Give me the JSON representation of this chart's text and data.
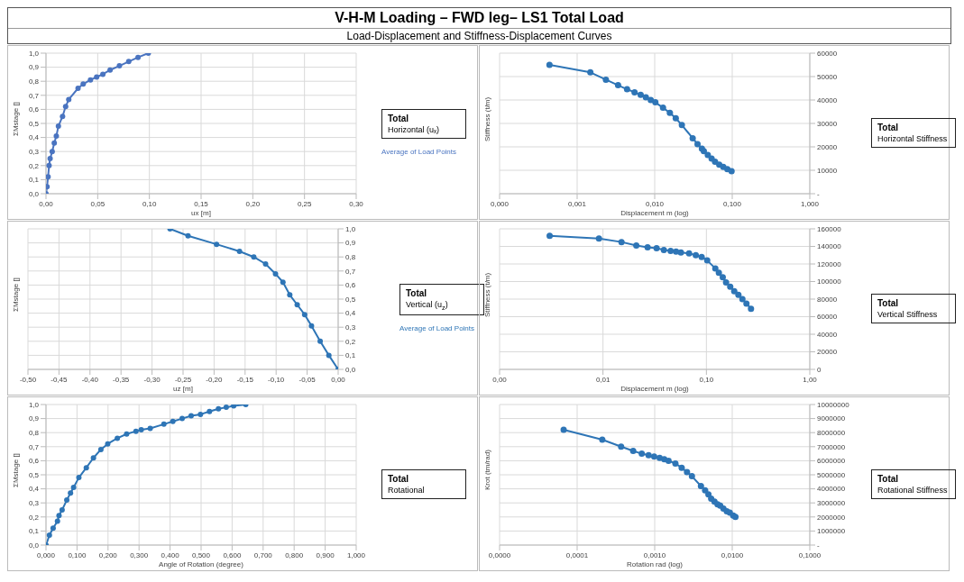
{
  "chart_data": [
    {
      "type": "other",
      "title": "V-H-M Loading – FWD leg– LS1 Total Load",
      "subtitle": "Load-Displacement and Stiffness-Displacement Curves"
    },
    {
      "type": "line",
      "annotations": [
        "Total",
        "Horizontal (uₓ)"
      ],
      "xlabel": "ux [m]",
      "ylabel": "ΣMstage []",
      "legend": "right",
      "grid": true,
      "marker": "circle",
      "line_style": "solid",
      "x": [
        0,
        0.001,
        0.002,
        0.003,
        0.004,
        0.006,
        0.008,
        0.01,
        0.012,
        0.016,
        0.019,
        0.022,
        0.031,
        0.036,
        0.043,
        0.049,
        0.055,
        0.062,
        0.071,
        0.08,
        0.089,
        0.099
      ],
      "series": [
        {
          "name": "Average of Load Points",
          "color": "#4a74c0",
          "values": [
            0,
            0.05,
            0.12,
            0.2,
            0.25,
            0.3,
            0.36,
            0.41,
            0.48,
            0.55,
            0.62,
            0.67,
            0.75,
            0.78,
            0.81,
            0.83,
            0.85,
            0.88,
            0.91,
            0.94,
            0.97,
            1.0
          ]
        }
      ],
      "xlim": [
        0,
        0.3
      ],
      "xticks": [
        {
          "value": 0,
          "label": "0,00"
        },
        {
          "value": 0.05,
          "label": "0,05"
        },
        {
          "value": 0.1,
          "label": "0,10"
        },
        {
          "value": 0.15,
          "label": "0,15"
        },
        {
          "value": 0.2,
          "label": "0,20"
        },
        {
          "value": 0.25,
          "label": "0,25"
        },
        {
          "value": 0.3,
          "label": "0,30"
        }
      ],
      "ylim": [
        0,
        1
      ],
      "yticks": [
        {
          "value": 0,
          "label": "0,0"
        },
        {
          "value": 0.1,
          "label": "0,1"
        },
        {
          "value": 0.2,
          "label": "0,2"
        },
        {
          "value": 0.3,
          "label": "0,3"
        },
        {
          "value": 0.4,
          "label": "0,4"
        },
        {
          "value": 0.5,
          "label": "0,5"
        },
        {
          "value": 0.6,
          "label": "0,6"
        },
        {
          "value": 0.7,
          "label": "0,7"
        },
        {
          "value": 0.8,
          "label": "0,8"
        },
        {
          "value": 0.9,
          "label": "0,9"
        },
        {
          "value": 1,
          "label": "1,0"
        }
      ]
    },
    {
      "type": "line",
      "annotations": [
        "Total",
        "Horizontal Stiffness"
      ],
      "xlabel": "Displacement m (log)",
      "ylabel": "Stiffness (t/m)",
      "log": "x",
      "grid": true,
      "marker": "circle",
      "line_style": "solid",
      "x": [
        0.00044,
        0.00148,
        0.00235,
        0.00337,
        0.0044,
        0.0055,
        0.0066,
        0.0077,
        0.0089,
        0.0102,
        0.0128,
        0.0157,
        0.0187,
        0.0224,
        0.0309,
        0.0357,
        0.0406,
        0.043,
        0.0484,
        0.0542,
        0.06,
        0.068,
        0.0767,
        0.0865,
        0.098
      ],
      "series": [
        {
          "color": "#2e75b6",
          "values": [
            55000,
            51800,
            48700,
            46300,
            44600,
            43300,
            42200,
            41200,
            40000,
            39000,
            36700,
            34500,
            32200,
            29300,
            23700,
            21200,
            19200,
            18200,
            16500,
            15000,
            13700,
            12400,
            11400,
            10500,
            9600
          ]
        }
      ],
      "xlim": [
        0.0001,
        1
      ],
      "xticks": [
        {
          "value": 0.0001,
          "label": "0,000"
        },
        {
          "value": 0.001,
          "label": "0,001"
        },
        {
          "value": 0.01,
          "label": "0,010"
        },
        {
          "value": 0.1,
          "label": "0,100"
        },
        {
          "value": 1,
          "label": "1,000"
        }
      ],
      "ylim": [
        0,
        60000
      ],
      "yticks": [
        {
          "value": 0,
          "label": "-"
        },
        10000,
        20000,
        30000,
        40000,
        50000,
        60000
      ]
    },
    {
      "type": "line",
      "annotations": [
        "Total",
        "Vertical (u$_{z}$)"
      ],
      "xlabel": "uz [m]",
      "ylabel": "ΣMstage []",
      "legend": "right",
      "grid": true,
      "marker": "circle",
      "line_style": "solid",
      "x": [
        -0.271,
        -0.242,
        -0.196,
        -0.159,
        -0.136,
        -0.117,
        -0.101,
        -0.089,
        -0.078,
        -0.066,
        -0.054,
        -0.043,
        -0.029,
        -0.015,
        0
      ],
      "series": [
        {
          "name": "Average of Load Points",
          "color": "#2e75b6",
          "values": [
            1.0,
            0.95,
            0.89,
            0.84,
            0.8,
            0.75,
            0.68,
            0.62,
            0.53,
            0.46,
            0.39,
            0.31,
            0.2,
            0.1,
            0
          ]
        }
      ],
      "xlim": [
        -0.5,
        0
      ],
      "xticks": [
        {
          "value": -0.5,
          "label": "-0,50"
        },
        {
          "value": -0.45,
          "label": "-0,45"
        },
        {
          "value": -0.4,
          "label": "-0,40"
        },
        {
          "value": -0.35,
          "label": "-0,35"
        },
        {
          "value": -0.3,
          "label": "-0,30"
        },
        {
          "value": -0.25,
          "label": "-0,25"
        },
        {
          "value": -0.2,
          "label": "-0,20"
        },
        {
          "value": -0.15,
          "label": "-0,15"
        },
        {
          "value": -0.1,
          "label": "-0,10"
        },
        {
          "value": -0.05,
          "label": "-0,05"
        },
        {
          "value": 0,
          "label": "0,00"
        }
      ],
      "ylim": [
        0,
        1
      ],
      "yticks": [
        {
          "value": 0,
          "label": "0,0"
        },
        {
          "value": 0.1,
          "label": "0,1"
        },
        {
          "value": 0.2,
          "label": "0,2"
        },
        {
          "value": 0.3,
          "label": "0,3"
        },
        {
          "value": 0.4,
          "label": "0,4"
        },
        {
          "value": 0.5,
          "label": "0,5"
        },
        {
          "value": 0.6,
          "label": "0,6"
        },
        {
          "value": 0.7,
          "label": "0,7"
        },
        {
          "value": 0.8,
          "label": "0,8"
        },
        {
          "value": 0.9,
          "label": "0,9"
        },
        {
          "value": 1,
          "label": "1,0"
        }
      ]
    },
    {
      "type": "line",
      "annotations": [
        "Total",
        "Vertical Stiffness"
      ],
      "xlabel": "Displacement m (log)",
      "ylabel": "Stiffness (t/m)",
      "log": "x",
      "grid": true,
      "marker": "circle",
      "line_style": "solid",
      "x": [
        0.00305,
        0.00914,
        0.0151,
        0.021,
        0.027,
        0.033,
        0.0388,
        0.0451,
        0.0509,
        0.0567,
        0.068,
        0.079,
        0.09,
        0.1018,
        0.122,
        0.132,
        0.144,
        0.155,
        0.17,
        0.186,
        0.204,
        0.223,
        0.244,
        0.27
      ],
      "series": [
        {
          "color": "#2e75b6",
          "values": [
            152000,
            149000,
            145000,
            141000,
            139000,
            138000,
            136000,
            135000,
            134000,
            133000,
            132000,
            130000,
            128000,
            124000,
            115000,
            110000,
            105000,
            99000,
            94000,
            89000,
            85000,
            80000,
            75000,
            69000
          ]
        }
      ],
      "xlim": [
        0.001,
        1
      ],
      "xticks": [
        {
          "value": 0.001,
          "label": "0,00"
        },
        {
          "value": 0.01,
          "label": "0,01"
        },
        {
          "value": 0.1,
          "label": "0,10"
        },
        {
          "value": 1,
          "label": "1,00"
        }
      ],
      "ylim": [
        0,
        160000
      ],
      "yticks": [
        0,
        20000,
        40000,
        60000,
        80000,
        100000,
        120000,
        140000,
        160000
      ]
    },
    {
      "type": "line",
      "annotations": [
        "Total",
        "Rotational"
      ],
      "xlabel": "Angle of Rotation (degree)",
      "ylabel": "ΣMstage []",
      "grid": true,
      "marker": "circle",
      "line_style": "solid",
      "x": [
        0,
        0.011,
        0.023,
        0.037,
        0.042,
        0.052,
        0.067,
        0.079,
        0.089,
        0.106,
        0.13,
        0.153,
        0.177,
        0.199,
        0.23,
        0.26,
        0.29,
        0.307,
        0.336,
        0.38,
        0.409,
        0.439,
        0.468,
        0.498,
        0.527,
        0.556,
        0.581,
        0.605,
        0.644
      ],
      "series": [
        {
          "color": "#2e75b6",
          "values": [
            0,
            0.07,
            0.12,
            0.17,
            0.21,
            0.25,
            0.32,
            0.37,
            0.41,
            0.48,
            0.55,
            0.62,
            0.68,
            0.72,
            0.76,
            0.79,
            0.81,
            0.82,
            0.83,
            0.86,
            0.88,
            0.9,
            0.92,
            0.93,
            0.95,
            0.97,
            0.98,
            0.99,
            1.0
          ]
        }
      ],
      "xlim": [
        0,
        1
      ],
      "xticks": [
        {
          "value": 0,
          "label": "0,000"
        },
        {
          "value": 0.1,
          "label": "0,100"
        },
        {
          "value": 0.2,
          "label": "0,200"
        },
        {
          "value": 0.3,
          "label": "0,300"
        },
        {
          "value": 0.4,
          "label": "0,400"
        },
        {
          "value": 0.5,
          "label": "0,500"
        },
        {
          "value": 0.6,
          "label": "0,600"
        },
        {
          "value": 0.7,
          "label": "0,700"
        },
        {
          "value": 0.8,
          "label": "0,800"
        },
        {
          "value": 0.9,
          "label": "0,900"
        },
        {
          "value": 1,
          "label": "1,000"
        }
      ],
      "ylim": [
        0,
        1
      ],
      "yticks": [
        {
          "value": 0,
          "label": "0,0"
        },
        {
          "value": 0.1,
          "label": "0,1"
        },
        {
          "value": 0.2,
          "label": "0,2"
        },
        {
          "value": 0.3,
          "label": "0,3"
        },
        {
          "value": 0.4,
          "label": "0,4"
        },
        {
          "value": 0.5,
          "label": "0,5"
        },
        {
          "value": 0.6,
          "label": "0,6"
        },
        {
          "value": 0.7,
          "label": "0,7"
        },
        {
          "value": 0.8,
          "label": "0,8"
        },
        {
          "value": 0.9,
          "label": "0,9"
        },
        {
          "value": 1,
          "label": "1,0"
        }
      ]
    },
    {
      "type": "line",
      "annotations": [
        "Total",
        "Rotational Stiffness"
      ],
      "xlabel": "Rotation rad (log)",
      "ylabel": "Krot (tm/rad)",
      "log": "x",
      "grid": true,
      "marker": "circle",
      "line_style": "solid",
      "x": [
        6.7e-05,
        0.000211,
        0.000369,
        0.000528,
        0.000681,
        0.000835,
        0.000984,
        0.00116,
        0.00133,
        0.00151,
        0.00185,
        0.00223,
        0.00261,
        0.00302,
        0.00395,
        0.00447,
        0.00493,
        0.00535,
        0.0059,
        0.00646,
        0.007,
        0.0077,
        0.0085,
        0.0093,
        0.0103,
        0.011
      ],
      "series": [
        {
          "color": "#2e75b6",
          "values": [
            8200000,
            7500000,
            7000000,
            6700000,
            6500000,
            6400000,
            6300000,
            6200000,
            6100000,
            6000000,
            5800000,
            5500000,
            5200000,
            4900000,
            4200000,
            3900000,
            3600000,
            3300000,
            3100000,
            2900000,
            2800000,
            2600000,
            2400000,
            2300000,
            2100000,
            2000000
          ]
        }
      ],
      "xlim": [
        1e-05,
        0.1
      ],
      "xticks": [
        {
          "value": 1e-05,
          "label": "0,0000"
        },
        {
          "value": 0.0001,
          "label": "0,0001"
        },
        {
          "value": 0.001,
          "label": "0,0010"
        },
        {
          "value": 0.01,
          "label": "0,0100"
        },
        {
          "value": 0.1,
          "label": "0,1000"
        }
      ],
      "ylim": [
        0,
        10000000
      ],
      "yticks": [
        {
          "value": 0,
          "label": "-"
        },
        1000000,
        2000000,
        3000000,
        4000000,
        5000000,
        6000000,
        7000000,
        8000000,
        9000000,
        10000000
      ]
    }
  ]
}
